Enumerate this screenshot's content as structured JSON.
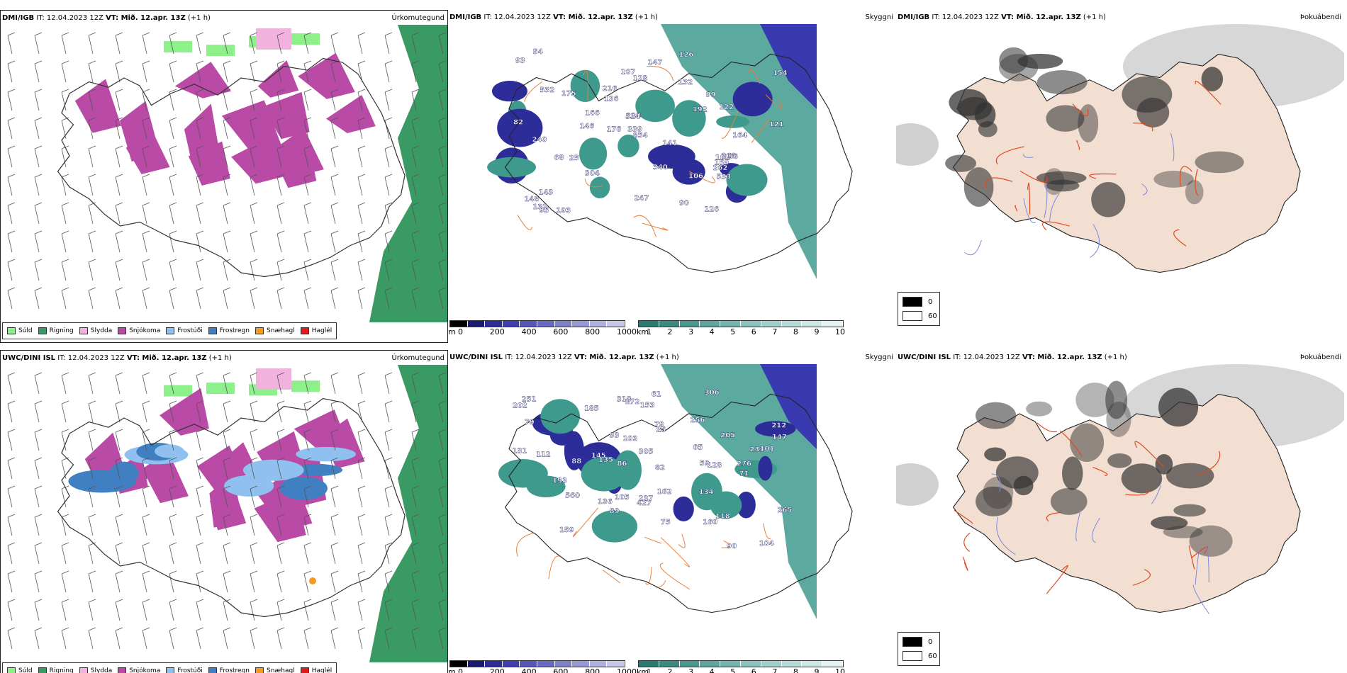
{
  "rows": [
    {
      "model": "DMI/IGB",
      "it_label": "IT: 12.04.2023 12Z",
      "vt_label": "VT: Mið. 12.apr. 13Z",
      "offset": "(+1 h)",
      "titles": {
        "precip": "Úrkomutegund",
        "visibility": "Skyggni",
        "fog": "Þokuábendi"
      },
      "vis_labels": [
        "132",
        "102",
        "132",
        "68",
        "193",
        "147",
        "141",
        "136",
        "166",
        "126",
        "90",
        "146",
        "192",
        "216",
        "263",
        "148",
        "164",
        "175",
        "54",
        "107",
        "96",
        "95",
        "138",
        "154",
        "128",
        "25",
        "93",
        "247",
        "532",
        "304",
        "854",
        "339",
        "240",
        "122",
        "340",
        "533",
        "262",
        "99",
        "106",
        "126",
        "176",
        "143",
        "82",
        "159",
        "524",
        "121"
      ]
    },
    {
      "model": "UWC/DINI ISL",
      "it_label": "IT: 12.04.2023 12Z",
      "vt_label": "VT: Mið. 12.apr. 13Z",
      "offset": "(+1 h)",
      "titles": {
        "precip": "Úrkomutegund",
        "visibility": "Skyggni",
        "fog": "Þokuábendi"
      },
      "vis_labels": [
        "136",
        "205",
        "313",
        "71",
        "88",
        "427",
        "237",
        "233",
        "79",
        "82",
        "112",
        "104",
        "93",
        "159",
        "212",
        "145",
        "153",
        "131",
        "256",
        "135",
        "89",
        "90",
        "79",
        "105",
        "251",
        "265",
        "86",
        "160",
        "305",
        "128",
        "193",
        "276",
        "306",
        "134",
        "103",
        "59",
        "65",
        "25",
        "202",
        "172",
        "162",
        "147",
        "185",
        "118",
        "101",
        "75",
        "61",
        "560"
      ]
    }
  ],
  "precip_legend": [
    {
      "label": "Súld",
      "color": "#8ef08a"
    },
    {
      "label": "Rigning",
      "color": "#3a9a64"
    },
    {
      "label": "Slydda",
      "color": "#f1b3dd"
    },
    {
      "label": "Snjókoma",
      "color": "#b94aa5"
    },
    {
      "label": "Frostúði",
      "color": "#8fc0ef"
    },
    {
      "label": "Frostregn",
      "color": "#3f7fc2"
    },
    {
      "label": "Snæhagl",
      "color": "#f39a20"
    },
    {
      "label": "Haglél",
      "color": "#e31a1c"
    }
  ],
  "vis_scale_m": {
    "unit": "m",
    "ticks": [
      "0",
      "200",
      "400",
      "600",
      "800",
      "1000"
    ],
    "colors": [
      "#000000",
      "#1b1b6e",
      "#2d2d9a",
      "#3f3fb0",
      "#5656b8",
      "#6a6ac0",
      "#8080c8",
      "#9898d2",
      "#b0b0dc",
      "#c8c8e6"
    ]
  },
  "vis_scale_km": {
    "unit": "km",
    "ticks": [
      "1",
      "2",
      "3",
      "4",
      "5",
      "6",
      "7",
      "8",
      "9",
      "10"
    ],
    "colors": [
      "#2b7a72",
      "#3a8a82",
      "#4c9890",
      "#5fa69e",
      "#74b4ac",
      "#8ac2bb",
      "#a0cfc9",
      "#b6dcd7",
      "#cde8e4",
      "#e4f3f1"
    ]
  },
  "fog_legend": [
    {
      "value": "0",
      "color": "#000000"
    },
    {
      "value": "60",
      "color": "#ffffff"
    }
  ]
}
